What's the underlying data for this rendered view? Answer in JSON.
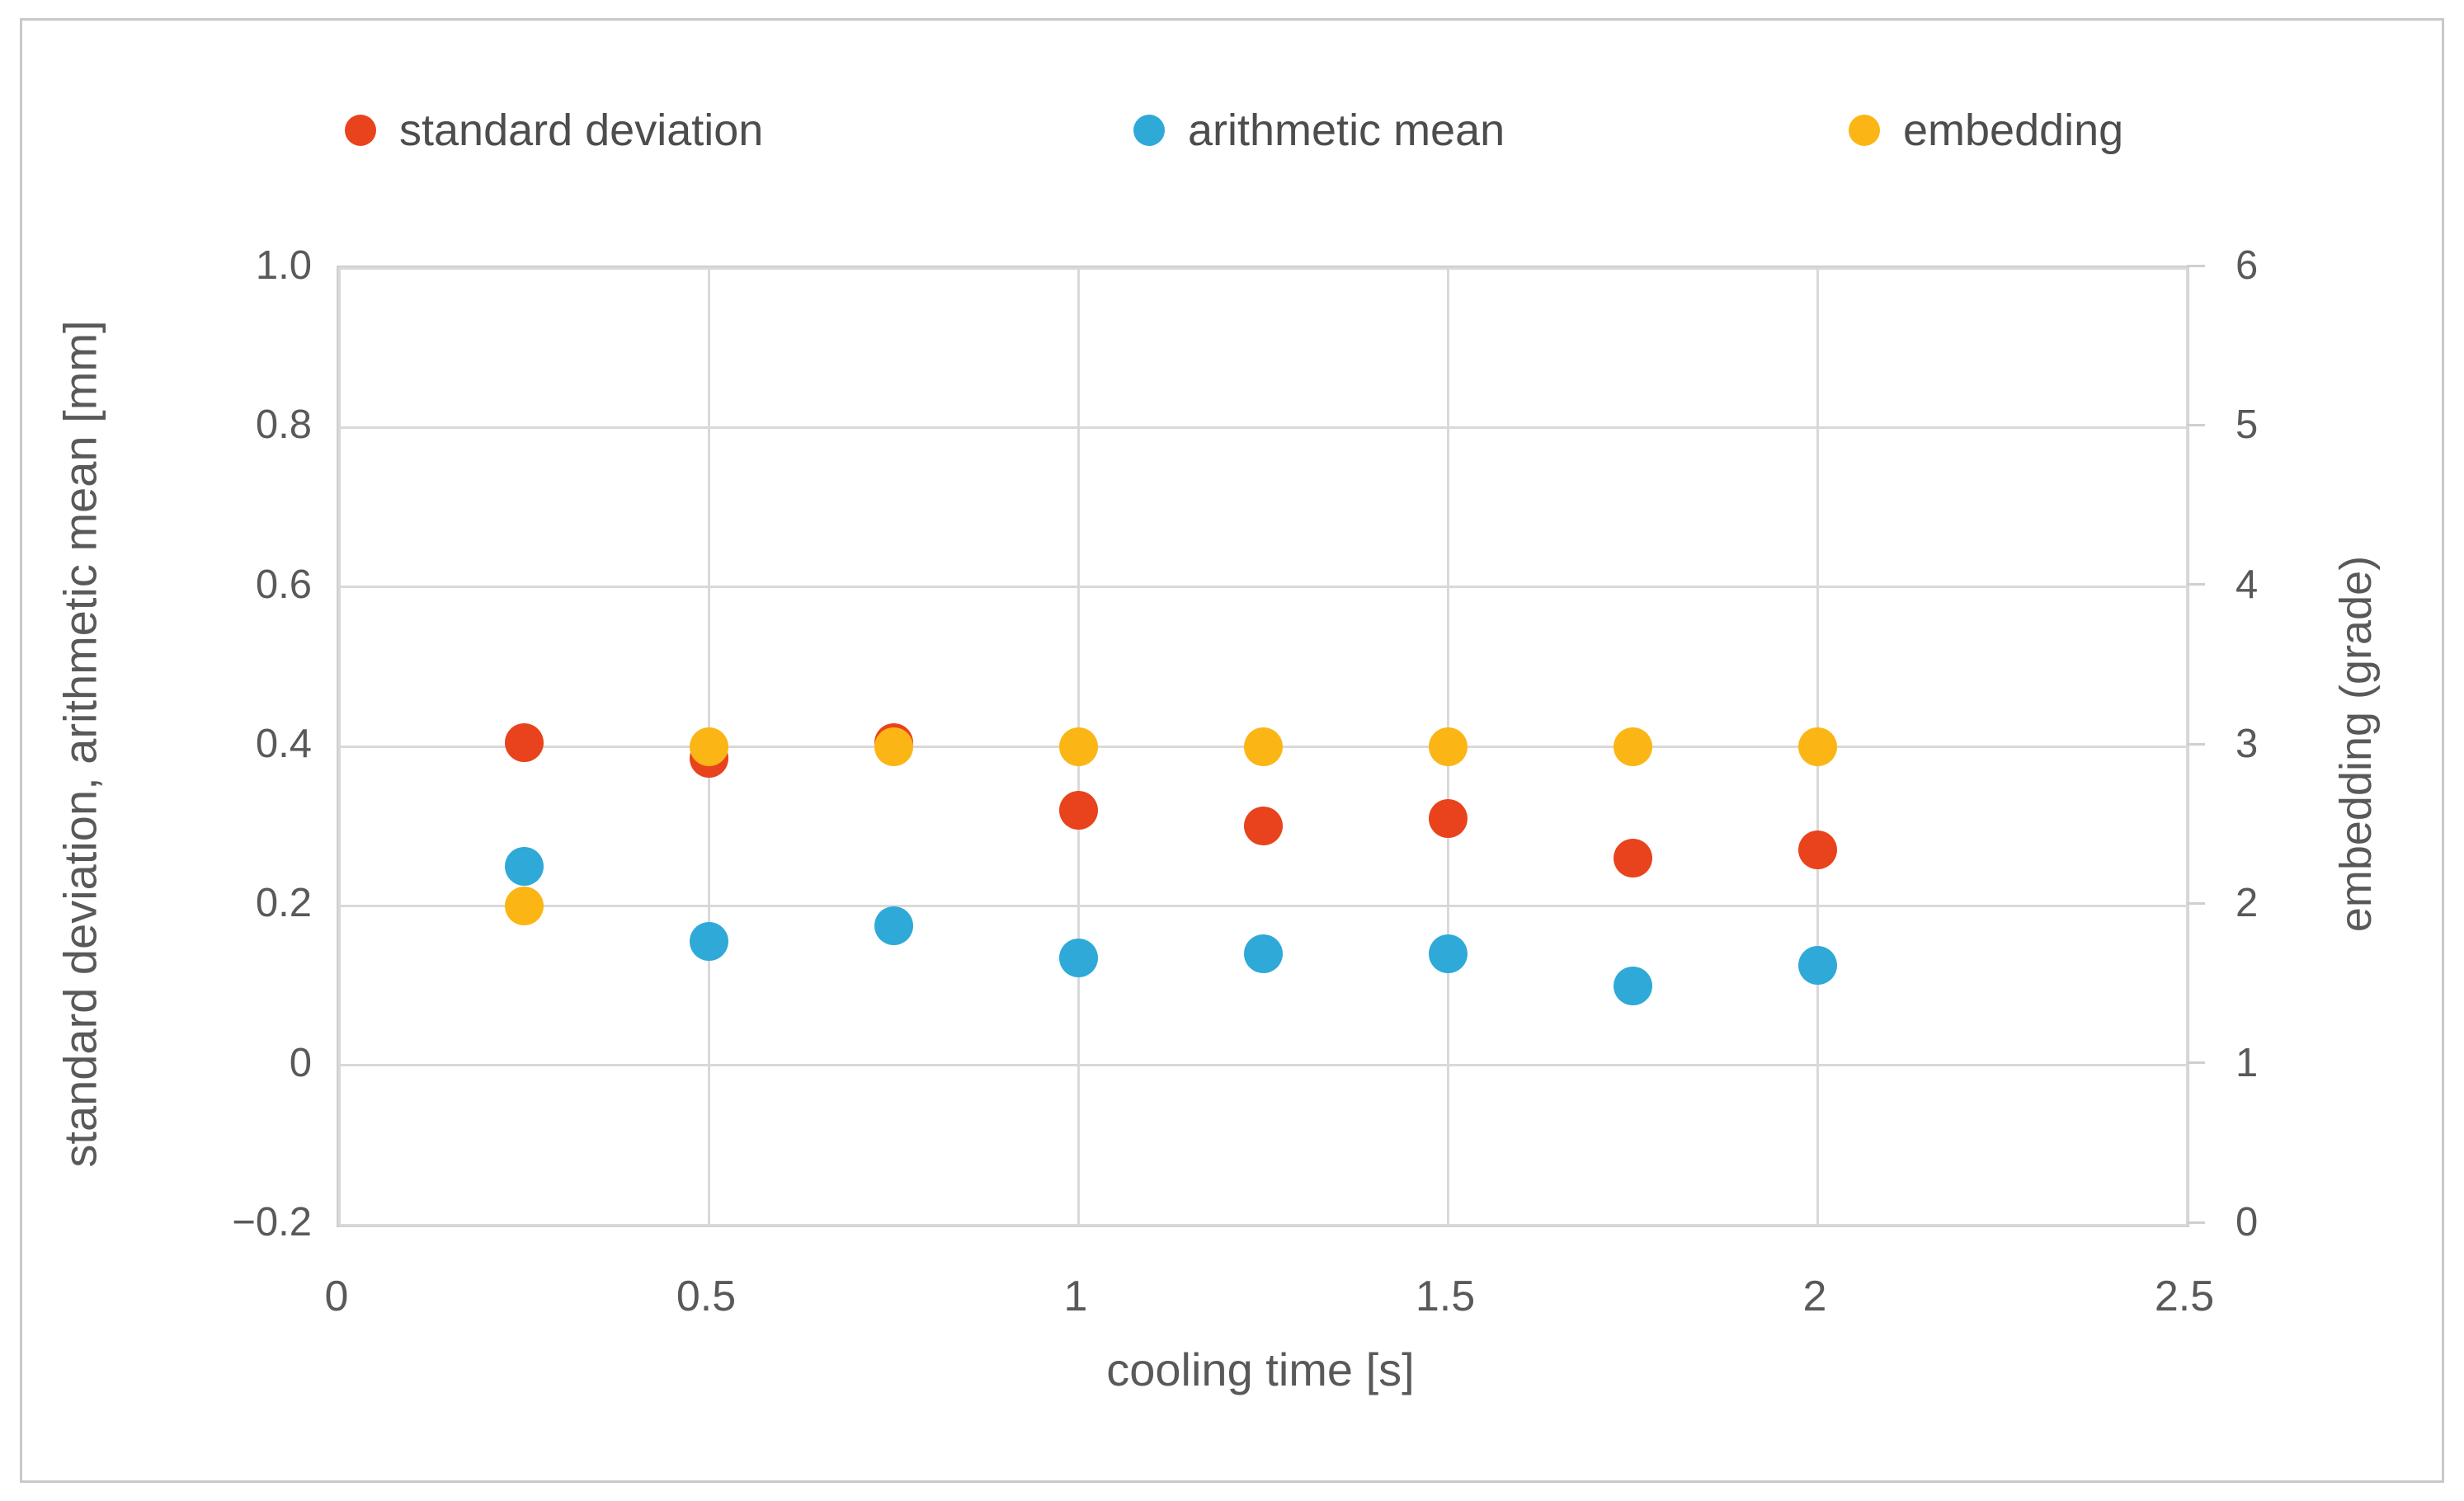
{
  "legend": {
    "items": [
      {
        "label": "standard deviation",
        "color": "#e8431c"
      },
      {
        "label": "arithmetic mean",
        "color": "#2ea9d8"
      },
      {
        "label": "embedding",
        "color": "#fbb515"
      }
    ]
  },
  "chart_data": {
    "type": "scatter",
    "x_axis": {
      "title": "cooling time [s]",
      "min": 0,
      "max": 2.5,
      "ticks": [
        0,
        0.5,
        1,
        1.5,
        2,
        2.5
      ],
      "tick_labels": [
        "0",
        "0.5",
        "1",
        "1.5",
        "2",
        "2.5"
      ]
    },
    "y_axis_left": {
      "title": "standard deviation, arithmetic mean [mm]",
      "min": -0.2,
      "max": 1.0,
      "ticks": [
        1.0,
        0.8,
        0.6,
        0.4,
        0.2,
        0,
        -0.2
      ],
      "tick_labels": [
        "1.0",
        "0.8",
        "0.6",
        "0.4",
        "0.2",
        "0",
        "−0.2"
      ]
    },
    "y_axis_right": {
      "title": "embedding (grade)",
      "min": 0,
      "max": 6,
      "ticks": [
        6,
        5,
        4,
        3,
        2,
        1,
        0
      ],
      "tick_labels": [
        "6",
        "5",
        "4",
        "3",
        "2",
        "1",
        "0"
      ]
    },
    "grid": true,
    "legend_position": "top",
    "series": [
      {
        "name": "standard deviation",
        "color": "#e8431c",
        "axis": "left",
        "points": [
          [
            0.25,
            0.405
          ],
          [
            0.5,
            0.385
          ],
          [
            0.75,
            0.405
          ],
          [
            1.0,
            0.32
          ],
          [
            1.25,
            0.3
          ],
          [
            1.5,
            0.31
          ],
          [
            1.75,
            0.26
          ],
          [
            2.0,
            0.27
          ]
        ]
      },
      {
        "name": "arithmetic mean",
        "color": "#2ea9d8",
        "axis": "left",
        "points": [
          [
            0.25,
            0.25
          ],
          [
            0.5,
            0.155
          ],
          [
            0.75,
            0.175
          ],
          [
            1.0,
            0.135
          ],
          [
            1.25,
            0.14
          ],
          [
            1.5,
            0.14
          ],
          [
            1.75,
            0.1
          ],
          [
            2.0,
            0.125
          ]
        ]
      },
      {
        "name": "embedding",
        "color": "#fbb515",
        "axis": "right",
        "points": [
          [
            0.25,
            2
          ],
          [
            0.5,
            3
          ],
          [
            0.75,
            3
          ],
          [
            1.0,
            3
          ],
          [
            1.25,
            3
          ],
          [
            1.5,
            3
          ],
          [
            1.75,
            3
          ],
          [
            2.0,
            3
          ]
        ]
      }
    ],
    "style": {
      "gridline_color": "#d9d9d9",
      "axis_line_color": "#cfcfcf",
      "tick_text_color": "#595959",
      "legend_text_color": "#4d4d4d",
      "frame_border_color": "#c9c9c9",
      "background": "#ffffff"
    }
  }
}
